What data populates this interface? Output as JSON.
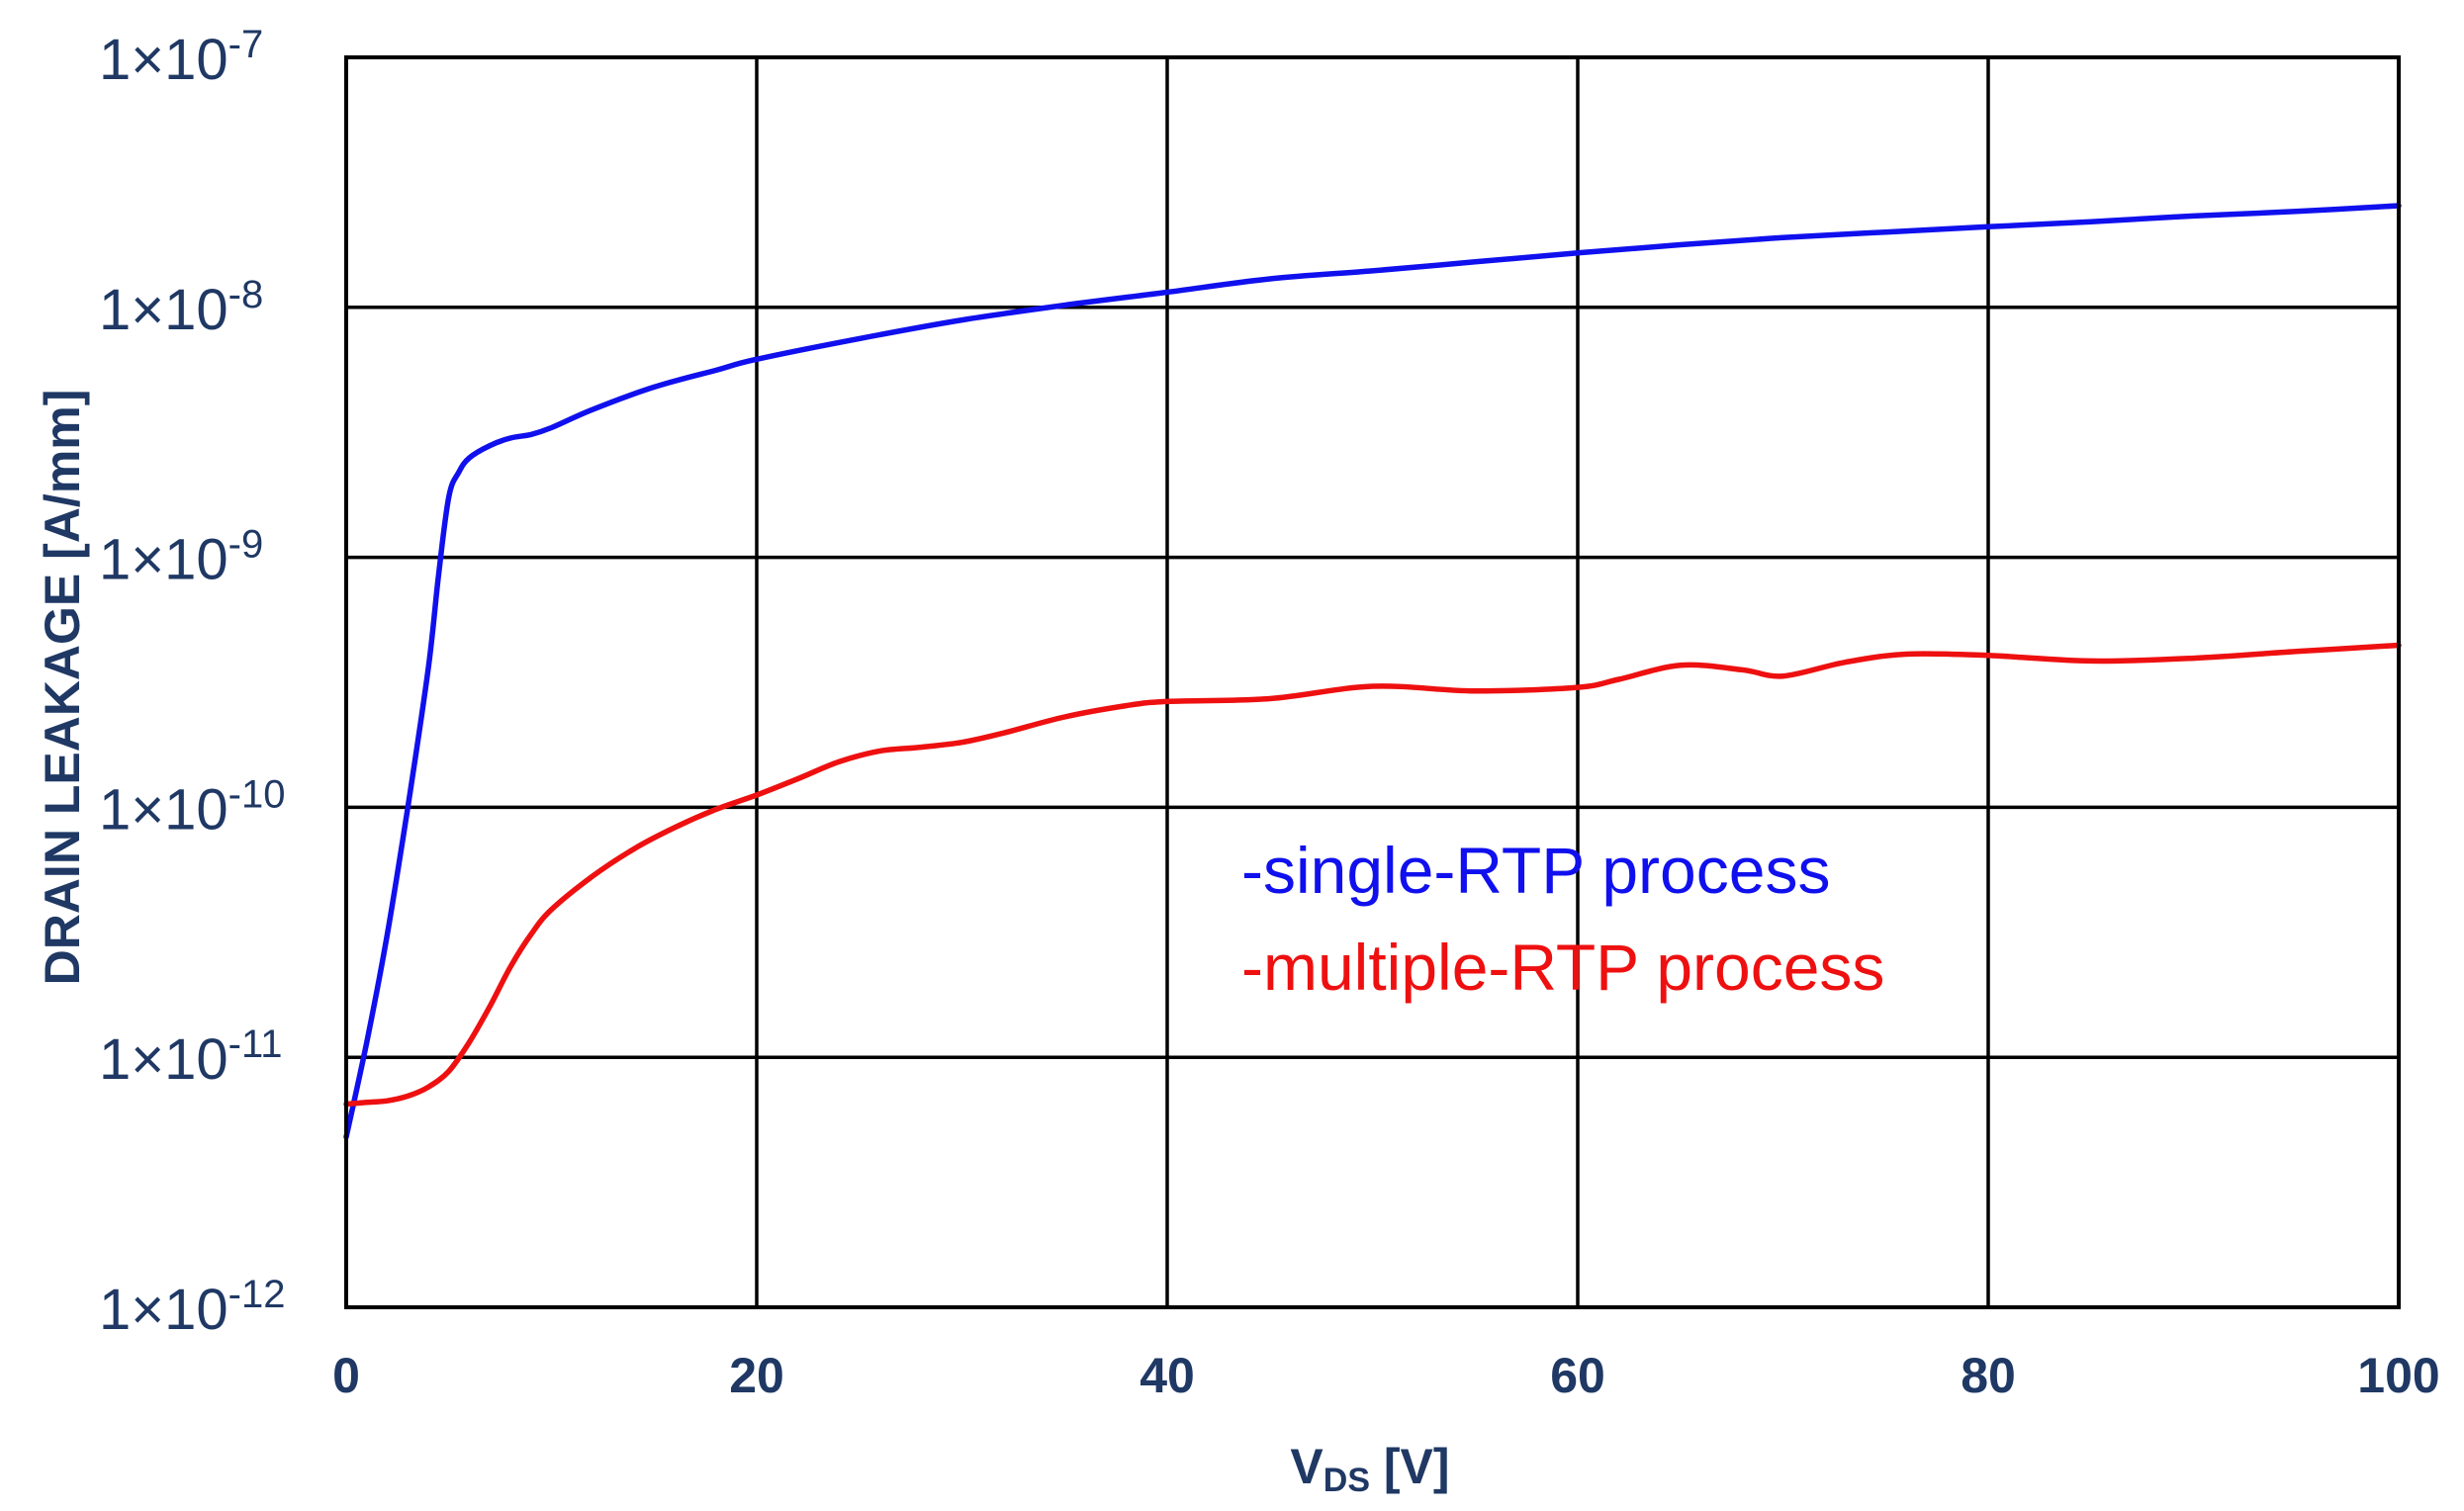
{
  "chart_data": {
    "type": "line",
    "title": "",
    "xlabel_main": "V",
    "xlabel_sub": "DS",
    "xlabel_unit": " [V]",
    "ylabel": "DRAIN LEAKAGE [A/mm]",
    "xlim": [
      0,
      100
    ],
    "ylim_log10": [
      -12,
      -7
    ],
    "yscale": "log",
    "grid": true,
    "x_ticks": [
      "0",
      "20",
      "40",
      "60",
      "80",
      "100"
    ],
    "y_ticks": [
      {
        "mantissa": "1×10",
        "exp": "-7",
        "log": -7
      },
      {
        "mantissa": "1×10",
        "exp": "-8",
        "log": -8
      },
      {
        "mantissa": "1×10",
        "exp": "-9",
        "log": -9
      },
      {
        "mantissa": "1×10",
        "exp": "-10",
        "log": -10
      },
      {
        "mantissa": "1×10",
        "exp": "-11",
        "log": -11
      },
      {
        "mantissa": "1×10",
        "exp": "-12",
        "log": -12
      }
    ],
    "series": [
      {
        "name": "-single-RTP process",
        "color": "#1010ee",
        "x": [
          0,
          1,
          2,
          3,
          4,
          4.5,
          5,
          5.5,
          6,
          7,
          8,
          9,
          10,
          12,
          15,
          18,
          20,
          25,
          30,
          35,
          40,
          45,
          50,
          55,
          60,
          65,
          70,
          75,
          80,
          85,
          90,
          95,
          100
        ],
        "y": [
          4.8e-12,
          1.15e-11,
          3.1e-11,
          1e-10,
          3.6e-10,
          8.5e-10,
          1.75e-09,
          2.2e-09,
          2.5e-09,
          2.8e-09,
          3e-09,
          3.1e-09,
          3.3e-09,
          3.9e-09,
          4.8e-09,
          5.6e-09,
          6.2e-09,
          7.5e-09,
          8.9e-09,
          1.02e-08,
          1.15e-08,
          1.3e-08,
          1.4e-08,
          1.52e-08,
          1.65e-08,
          1.78e-08,
          1.9e-08,
          2e-08,
          2.1e-08,
          2.2e-08,
          2.32e-08,
          2.42e-08,
          2.55e-08
        ]
      },
      {
        "name": "-multiple-RTP process",
        "color": "#ee1010",
        "x": [
          0,
          1,
          2,
          3,
          4,
          5,
          6,
          7,
          8,
          9,
          10,
          12,
          14,
          16,
          18,
          20,
          22,
          24,
          26,
          28,
          30,
          32,
          35,
          38,
          40,
          45,
          50,
          55,
          60,
          62,
          65,
          68,
          70,
          73,
          76,
          80,
          85,
          90,
          95,
          100
        ],
        "y": [
          6.5e-12,
          6.6e-12,
          6.7e-12,
          7e-12,
          7.6e-12,
          8.8e-12,
          1.15e-11,
          1.6e-11,
          2.3e-11,
          3.1e-11,
          3.9e-11,
          5.3e-11,
          6.8e-11,
          8.3e-11,
          9.8e-11,
          1.12e-10,
          1.3e-10,
          1.52e-10,
          1.68e-10,
          1.74e-10,
          1.82e-10,
          1.98e-10,
          2.3e-10,
          2.55e-10,
          2.65e-10,
          2.72e-10,
          3.05e-10,
          2.92e-10,
          3.02e-10,
          3.25e-10,
          3.7e-10,
          3.55e-10,
          3.35e-10,
          3.8e-10,
          4.1e-10,
          4.05e-10,
          3.85e-10,
          3.95e-10,
          4.2e-10,
          4.45e-10
        ]
      }
    ]
  }
}
